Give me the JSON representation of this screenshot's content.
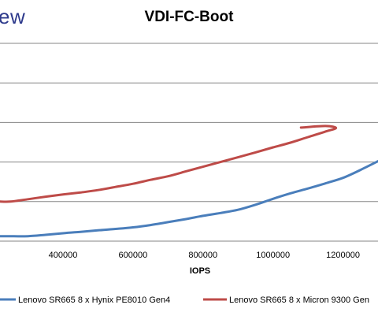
{
  "header": {
    "logo_text": "ew"
  },
  "chart_data": {
    "type": "line",
    "title": "VDI-FC-Boot",
    "xlabel": "IOPS",
    "ylabel": "",
    "xlim": [
      220000,
      1300000
    ],
    "x_ticks": [
      400000,
      600000,
      800000,
      1000000,
      1200000
    ],
    "x_tick_labels": [
      "400000",
      "600000",
      "800000",
      "1000000",
      "1200000"
    ],
    "grid": "horizontal",
    "legend_position": "bottom",
    "series": [
      {
        "name": "Lenovo SR665 8 x Hynix PE8010 Gen4",
        "color": "#4a7ebb",
        "x": [
          220000,
          260000,
          300000,
          350000,
          400000,
          450000,
          500000,
          550000,
          600000,
          650000,
          700000,
          750000,
          800000,
          850000,
          900000,
          950000,
          1000000,
          1050000,
          1100000,
          1150000,
          1200000,
          1250000,
          1300000
        ],
        "y": [
          0.62,
          0.62,
          0.63,
          0.8,
          1.0,
          1.18,
          1.36,
          1.54,
          1.74,
          2.03,
          2.4,
          2.78,
          3.2,
          3.56,
          3.96,
          4.6,
          5.35,
          6.05,
          6.65,
          7.3,
          8.0,
          9.0,
          10.1
        ]
      },
      {
        "name": "Lenovo SR665 8 x Micron 9300 Gen",
        "color": "#be4b48",
        "x": [
          220000,
          250000,
          300000,
          350000,
          400000,
          450000,
          500000,
          550000,
          600000,
          650000,
          700000,
          750000,
          800000,
          850000,
          900000,
          950000,
          1000000,
          1050000,
          1100000,
          1150000,
          1180000,
          1150000,
          1080000
        ],
        "y": [
          5.0,
          5.0,
          5.3,
          5.62,
          5.9,
          6.15,
          6.45,
          6.85,
          7.25,
          7.75,
          8.2,
          8.8,
          9.4,
          10.0,
          10.6,
          11.22,
          11.85,
          12.45,
          13.15,
          13.85,
          14.3,
          14.55,
          14.35
        ]
      }
    ]
  }
}
